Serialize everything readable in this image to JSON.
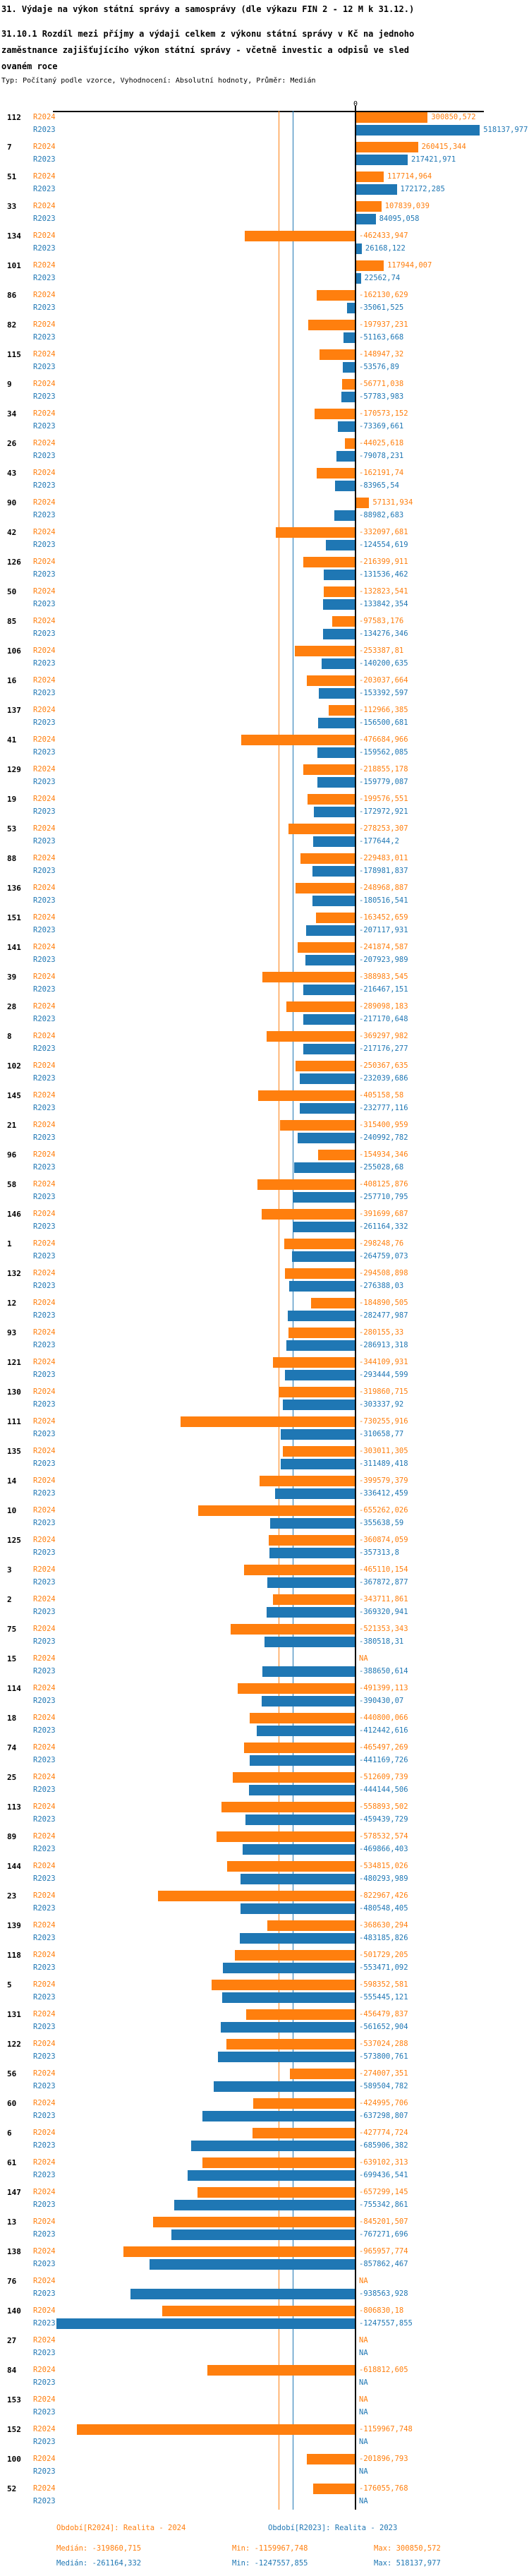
{
  "header": {
    "title": "31. Výdaje na výkon státní správy a samosprávy (dle výkazu FIN 2 - 12 M k 31.12.)",
    "subtitle": "31.10.1 Rozdíl mezi příjmy a výdaji celkem z výkonu státní správy v Kč na jednoho\n zaměstnance zajišťujícího výkon státní správy - včetně investic a odpisů ve sled\novaném roce",
    "meta": "Typ: Počítaný podle vzorce, Vyhodnocení: Absolutní hodnoty, Průměr: Medián"
  },
  "chart_data": {
    "type": "bar",
    "orientation": "horizontal",
    "value_axis": {
      "zero_label": "0",
      "unit": "Kč na zaměstnance"
    },
    "series": [
      {
        "name": "R2024",
        "color": "#ff7f0e",
        "median_value": -319860.715
      },
      {
        "name": "R2023",
        "color": "#1f77b4",
        "median_value": -261164.332
      }
    ],
    "na_text": "NA",
    "rows": [
      {
        "id": "112",
        "r2024": "300850,572",
        "r2023": "518137,977"
      },
      {
        "id": "7",
        "r2024": "260415,344",
        "r2023": "217421,971"
      },
      {
        "id": "51",
        "r2024": "117714,964",
        "r2023": "172172,285"
      },
      {
        "id": "33",
        "r2024": "107839,039",
        "r2023": "84095,058"
      },
      {
        "id": "134",
        "r2024": "-462433,947",
        "r2023": "26168,122"
      },
      {
        "id": "101",
        "r2024": "117944,007",
        "r2023": "22562,74"
      },
      {
        "id": "86",
        "r2024": "-162130,629",
        "r2023": "-35061,525"
      },
      {
        "id": "82",
        "r2024": "-197937,231",
        "r2023": "-51163,668"
      },
      {
        "id": "115",
        "r2024": "-148947,32",
        "r2023": "-53576,89"
      },
      {
        "id": "9",
        "r2024": "-56771,038",
        "r2023": "-57783,983"
      },
      {
        "id": "34",
        "r2024": "-170573,152",
        "r2023": "-73369,661"
      },
      {
        "id": "26",
        "r2024": "-44025,618",
        "r2023": "-79078,231"
      },
      {
        "id": "43",
        "r2024": "-162191,74",
        "r2023": "-83965,54"
      },
      {
        "id": "90",
        "r2024": "57131,934",
        "r2023": "-88982,683"
      },
      {
        "id": "42",
        "r2024": "-332097,681",
        "r2023": "-124554,619"
      },
      {
        "id": "126",
        "r2024": "-216399,911",
        "r2023": "-131536,462"
      },
      {
        "id": "50",
        "r2024": "-132823,541",
        "r2023": "-133842,354"
      },
      {
        "id": "85",
        "r2024": "-97583,176",
        "r2023": "-134276,346"
      },
      {
        "id": "106",
        "r2024": "-253387,81",
        "r2023": "-140200,635"
      },
      {
        "id": "16",
        "r2024": "-203037,664",
        "r2023": "-153392,597"
      },
      {
        "id": "137",
        "r2024": "-112966,385",
        "r2023": "-156500,681"
      },
      {
        "id": "41",
        "r2024": "-476684,966",
        "r2023": "-159562,085"
      },
      {
        "id": "129",
        "r2024": "-218855,178",
        "r2023": "-159779,087"
      },
      {
        "id": "19",
        "r2024": "-199576,551",
        "r2023": "-172972,921"
      },
      {
        "id": "53",
        "r2024": "-278253,307",
        "r2023": "-177644,2"
      },
      {
        "id": "88",
        "r2024": "-229483,011",
        "r2023": "-178981,837"
      },
      {
        "id": "136",
        "r2024": "-248968,887",
        "r2023": "-180516,541"
      },
      {
        "id": "151",
        "r2024": "-163452,659",
        "r2023": "-207117,931"
      },
      {
        "id": "141",
        "r2024": "-241874,587",
        "r2023": "-207923,989"
      },
      {
        "id": "39",
        "r2024": "-388983,545",
        "r2023": "-216467,151"
      },
      {
        "id": "28",
        "r2024": "-289098,183",
        "r2023": "-217170,648"
      },
      {
        "id": "8",
        "r2024": "-369297,982",
        "r2023": "-217176,277"
      },
      {
        "id": "102",
        "r2024": "-250367,635",
        "r2023": "-232039,686"
      },
      {
        "id": "145",
        "r2024": "-405158,58",
        "r2023": "-232777,116"
      },
      {
        "id": "21",
        "r2024": "-315400,959",
        "r2023": "-240992,782"
      },
      {
        "id": "96",
        "r2024": "-154934,346",
        "r2023": "-255028,68"
      },
      {
        "id": "58",
        "r2024": "-408125,876",
        "r2023": "-257710,795"
      },
      {
        "id": "146",
        "r2024": "-391699,687",
        "r2023": "-261164,332"
      },
      {
        "id": "1",
        "r2024": "-298248,76",
        "r2023": "-264759,073"
      },
      {
        "id": "132",
        "r2024": "-294508,898",
        "r2023": "-276388,03"
      },
      {
        "id": "12",
        "r2024": "-184890,505",
        "r2023": "-282477,987"
      },
      {
        "id": "93",
        "r2024": "-280155,33",
        "r2023": "-286913,318"
      },
      {
        "id": "121",
        "r2024": "-344109,931",
        "r2023": "-293444,599"
      },
      {
        "id": "130",
        "r2024": "-319860,715",
        "r2023": "-303337,92"
      },
      {
        "id": "111",
        "r2024": "-730255,916",
        "r2023": "-310658,77"
      },
      {
        "id": "135",
        "r2024": "-303011,305",
        "r2023": "-311489,418"
      },
      {
        "id": "14",
        "r2024": "-399579,379",
        "r2023": "-336412,459"
      },
      {
        "id": "10",
        "r2024": "-655262,026",
        "r2023": "-355638,59"
      },
      {
        "id": "125",
        "r2024": "-360874,059",
        "r2023": "-357313,8"
      },
      {
        "id": "3",
        "r2024": "-465110,154",
        "r2023": "-367872,877"
      },
      {
        "id": "2",
        "r2024": "-343711,861",
        "r2023": "-369320,941"
      },
      {
        "id": "75",
        "r2024": "-521353,343",
        "r2023": "-380518,31"
      },
      {
        "id": "15",
        "r2024": "NA",
        "r2023": "-388650,614"
      },
      {
        "id": "114",
        "r2024": "-491399,113",
        "r2023": "-390430,07"
      },
      {
        "id": "18",
        "r2024": "-440800,066",
        "r2023": "-412442,616"
      },
      {
        "id": "74",
        "r2024": "-465497,269",
        "r2023": "-441169,726"
      },
      {
        "id": "25",
        "r2024": "-512609,739",
        "r2023": "-444144,506"
      },
      {
        "id": "113",
        "r2024": "-558893,502",
        "r2023": "-459439,729"
      },
      {
        "id": "89",
        "r2024": "-578532,574",
        "r2023": "-469866,403"
      },
      {
        "id": "144",
        "r2024": "-534815,026",
        "r2023": "-480293,989"
      },
      {
        "id": "23",
        "r2024": "-822967,426",
        "r2023": "-480548,405"
      },
      {
        "id": "139",
        "r2024": "-368630,294",
        "r2023": "-483185,826"
      },
      {
        "id": "118",
        "r2024": "-501729,205",
        "r2023": "-553471,092"
      },
      {
        "id": "5",
        "r2024": "-598352,581",
        "r2023": "-555445,121"
      },
      {
        "id": "131",
        "r2024": "-456479,837",
        "r2023": "-561652,904"
      },
      {
        "id": "122",
        "r2024": "-537024,288",
        "r2023": "-573800,761"
      },
      {
        "id": "56",
        "r2024": "-274007,351",
        "r2023": "-589504,782"
      },
      {
        "id": "60",
        "r2024": "-424995,706",
        "r2023": "-637298,807"
      },
      {
        "id": "6",
        "r2024": "-427774,724",
        "r2023": "-685906,382"
      },
      {
        "id": "61",
        "r2024": "-639102,313",
        "r2023": "-699436,541"
      },
      {
        "id": "147",
        "r2024": "-657299,145",
        "r2023": "-755342,861"
      },
      {
        "id": "13",
        "r2024": "-845201,507",
        "r2023": "-767271,696"
      },
      {
        "id": "138",
        "r2024": "-965957,774",
        "r2023": "-857862,467"
      },
      {
        "id": "76",
        "r2024": "NA",
        "r2023": "-938563,928"
      },
      {
        "id": "140",
        "r2024": "-806830,18",
        "r2023": "-1247557,855"
      },
      {
        "id": "27",
        "r2024": "NA",
        "r2023": "NA"
      },
      {
        "id": "84",
        "r2024": "-618812,605",
        "r2023": "NA"
      },
      {
        "id": "153",
        "r2024": "NA",
        "r2023": "NA"
      },
      {
        "id": "152",
        "r2024": "-1159967,748",
        "r2023": "NA"
      },
      {
        "id": "100",
        "r2024": "-201896,793",
        "r2023": "NA"
      },
      {
        "id": "52",
        "r2024": "-176055,768",
        "r2023": "NA"
      }
    ]
  },
  "footer": {
    "period_r2024": "Období[R2024]: Realita - 2024",
    "period_r2023": "Období[R2023]: Realita - 2023",
    "stats_r2024": {
      "median": "Medián: -319860,715",
      "min": "Min: -1159967,748",
      "max": "Max: 300850,572"
    },
    "stats_r2023": {
      "median": "Medián: -261164,332",
      "min": "Min: -1247557,855",
      "max": "Max: 518137,977"
    }
  }
}
